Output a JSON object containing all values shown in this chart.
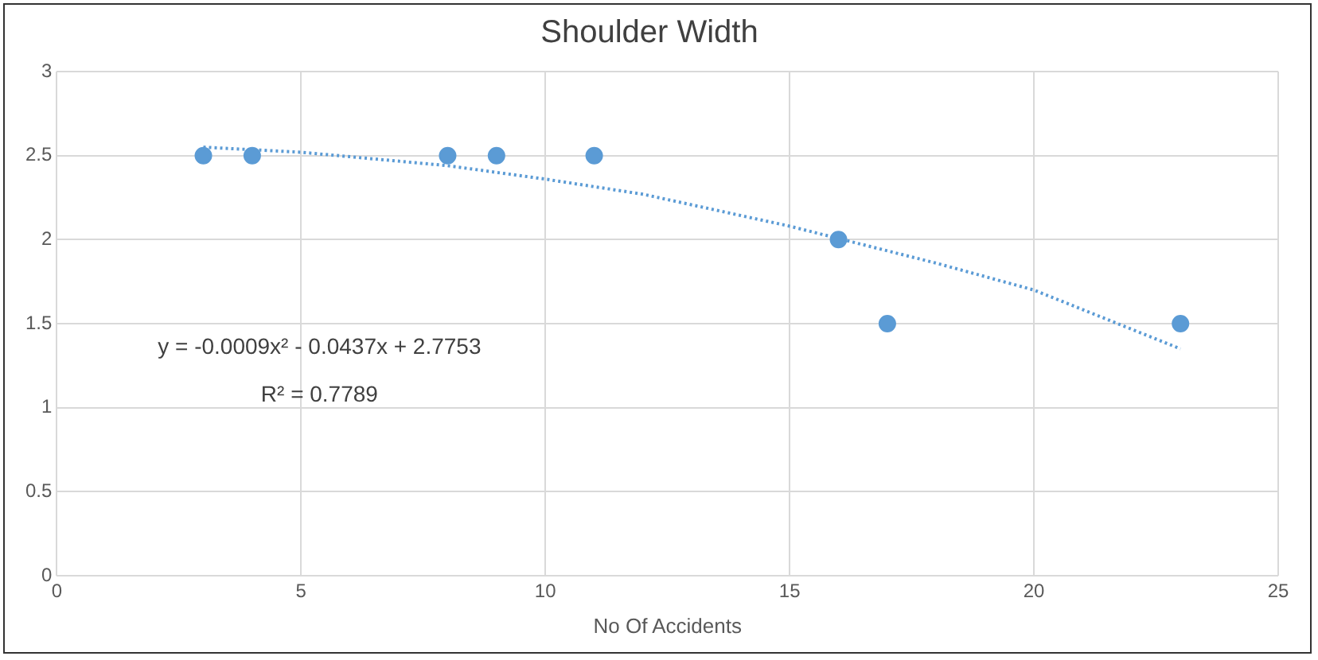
{
  "chart_data": {
    "type": "scatter",
    "title": "Shoulder Width",
    "xlabel": "No Of Accidents",
    "series": [
      {
        "color": "#5b9bd5",
        "x": [
          3,
          4,
          8,
          9,
          11,
          16,
          17,
          23
        ],
        "values": [
          2.5,
          2.5,
          2.5,
          2.5,
          2.5,
          2,
          1.5,
          1.5
        ],
        "marker": "circle"
      },
      {
        "type": "line",
        "color": "#5b9bd5",
        "x": [
          3,
          5,
          8,
          10,
          12,
          15,
          18,
          20,
          23
        ],
        "values": [
          2.55,
          2.52,
          2.44,
          2.36,
          2.27,
          2.08,
          1.86,
          1.7,
          1.35
        ],
        "line_style": "dotted",
        "marker": "none"
      }
    ],
    "annotations": [
      "y = -0.0009x² - 0.0437x + 2.7753",
      "R² = 0.7789"
    ],
    "xlim": [
      0,
      25
    ],
    "xticks": [
      0,
      5,
      10,
      15,
      20,
      25
    ],
    "ylim": [
      0,
      3
    ],
    "yticks": [
      0,
      0.5,
      1,
      1.5,
      2,
      2.5,
      3
    ],
    "grid": true,
    "legend": false
  }
}
